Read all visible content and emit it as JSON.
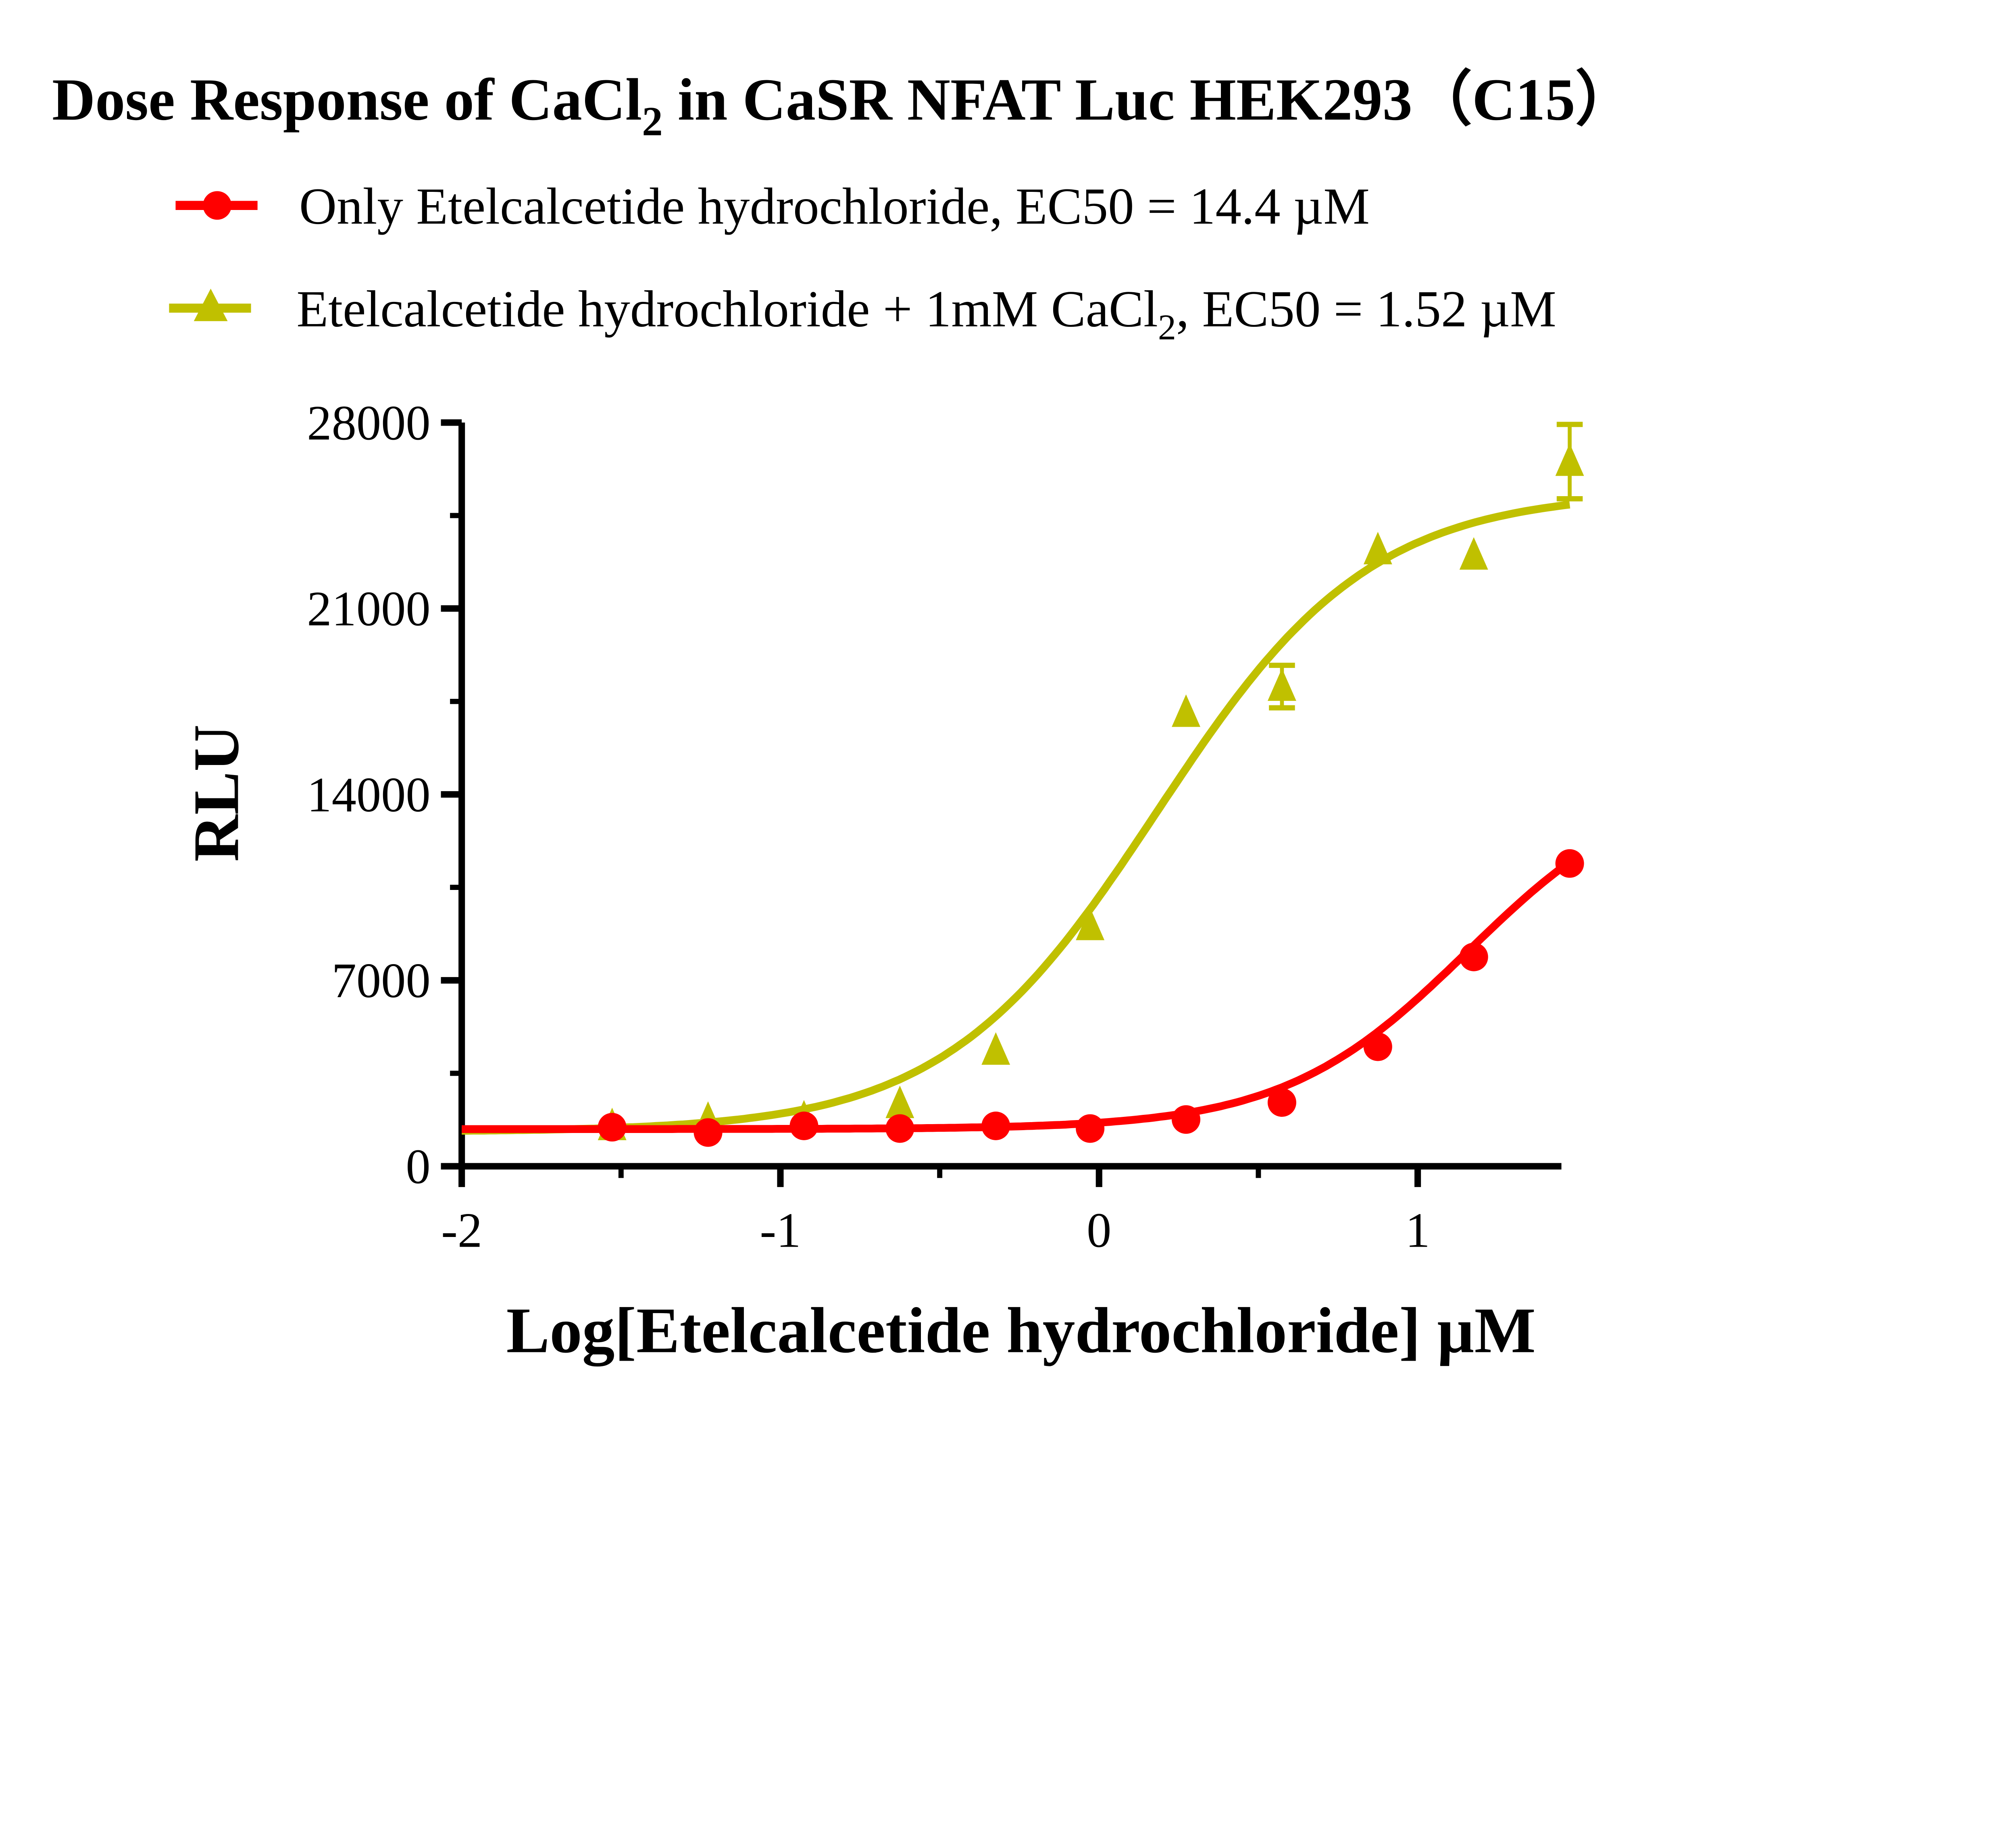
{
  "chart_data": {
    "type": "scatter",
    "title": "Dose Response of CaCl",
    "title_sub": "2",
    "title_rest": " in CaSR NFAT Luc HEK293（C15）",
    "xlabel": "Log[Etelcalcetide hydrochloride] µM",
    "ylabel": "RLU",
    "xlim": [
      -2,
      1.5
    ],
    "ylim": [
      0,
      28000
    ],
    "xticks": [
      "-2",
      "-1",
      "0",
      "1"
    ],
    "xtick_values": [
      -2,
      -1,
      0,
      1
    ],
    "yticks": [
      "0",
      "7000",
      "14000",
      "21000",
      "28000"
    ],
    "ytick_values": [
      0,
      7000,
      14000,
      21000,
      28000
    ],
    "grid": false,
    "legend_position": "top",
    "series": [
      {
        "name": "Only Etelcalcetide hydrochloride, EC50 = 14.4 µM",
        "legend_pre": "Only Etelcalcetide hydrochloride, EC50 = 14.4 µM",
        "legend_sub": "",
        "legend_post": "",
        "marker": "circle",
        "color": "#ff0000",
        "x": [
          -1.528,
          -1.227,
          -0.926,
          -0.625,
          -0.324,
          -0.028,
          0.273,
          0.574,
          0.875,
          1.176,
          1.477
        ],
        "y": [
          1470,
          1270,
          1520,
          1420,
          1520,
          1420,
          1760,
          2400,
          4500,
          7880,
          11400
        ],
        "error": [
          0,
          0,
          0,
          0,
          0,
          0,
          0,
          0,
          0,
          0,
          0
        ],
        "fit": {
          "bottom": 1400,
          "top": 14800,
          "logEC50": 1.158,
          "hill": 1.5
        }
      },
      {
        "name": "Etelcalcetide hydrochloride + 1mM CaCl2, EC50 = 1.52 µM",
        "legend_pre": "Etelcalcetide hydrochloride + 1mM CaCl",
        "legend_sub": "2",
        "legend_post": ", EC50 = 1.52 µM",
        "marker": "triangle",
        "color": "#c0c000",
        "x": [
          -1.528,
          -1.227,
          -0.926,
          -0.625,
          -0.324,
          -0.028,
          0.273,
          0.574,
          0.875,
          1.176,
          1.477
        ],
        "y": [
          1520,
          1760,
          1810,
          2350,
          4360,
          9050,
          17080,
          18060,
          23200,
          23000,
          26530
        ],
        "error": [
          0,
          0,
          0,
          0,
          0,
          0,
          0,
          800,
          0,
          0,
          1400
        ],
        "fit": {
          "bottom": 1300,
          "top": 25400,
          "logEC50": 0.182,
          "hill": 1.3
        }
      }
    ]
  }
}
